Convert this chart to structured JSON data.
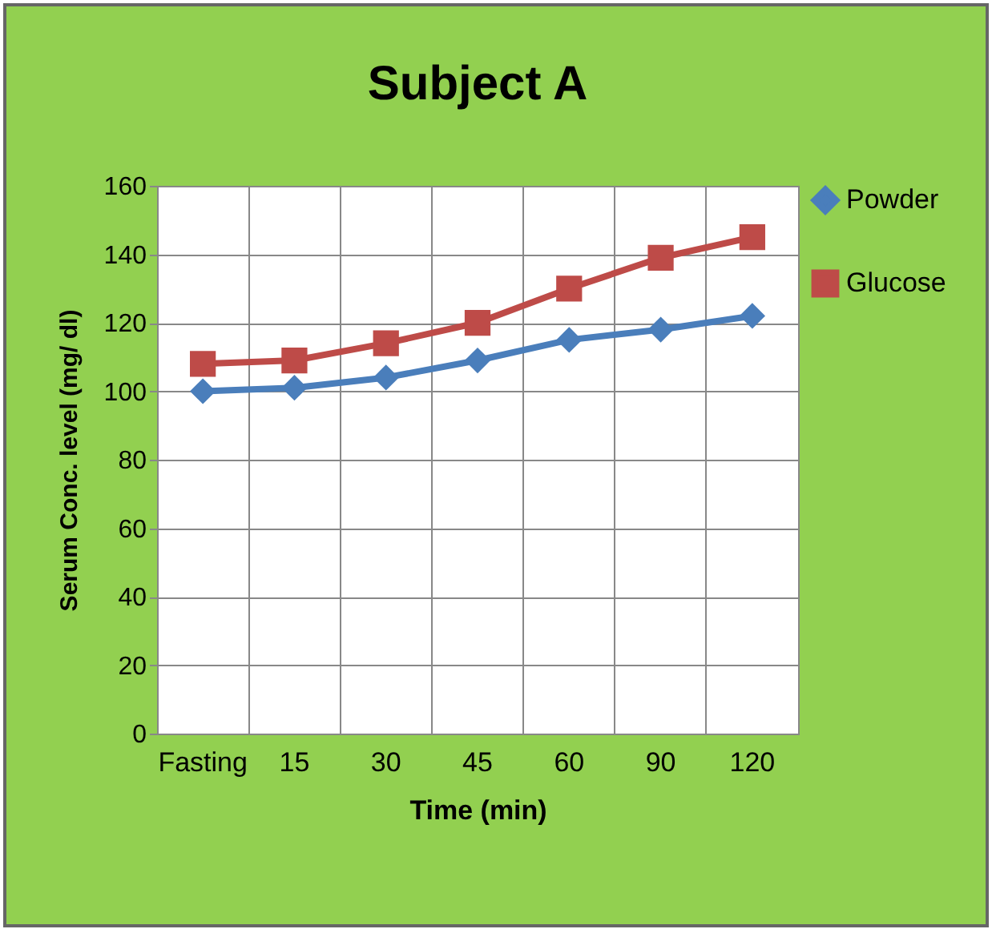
{
  "chart_data": {
    "type": "line",
    "title": "Subject A",
    "xlabel": "Time (min)",
    "ylabel": "Serum  Conc. level (mg/ dl)",
    "categories": [
      "Fasting",
      "15",
      "30",
      "45",
      "60",
      "90",
      "120"
    ],
    "series": [
      {
        "name": "Powder",
        "color": "#4a7ebb",
        "marker": "diamond",
        "values": [
          100,
          101,
          104,
          109,
          115,
          118,
          122
        ]
      },
      {
        "name": "Glucose",
        "color": "#be4b48",
        "marker": "square",
        "values": [
          108,
          109,
          114,
          120,
          130,
          139,
          145
        ]
      }
    ],
    "ylim": [
      0,
      160
    ],
    "yticks": [
      0,
      20,
      40,
      60,
      80,
      100,
      120,
      140,
      160
    ],
    "grid": true,
    "legend": "right"
  }
}
